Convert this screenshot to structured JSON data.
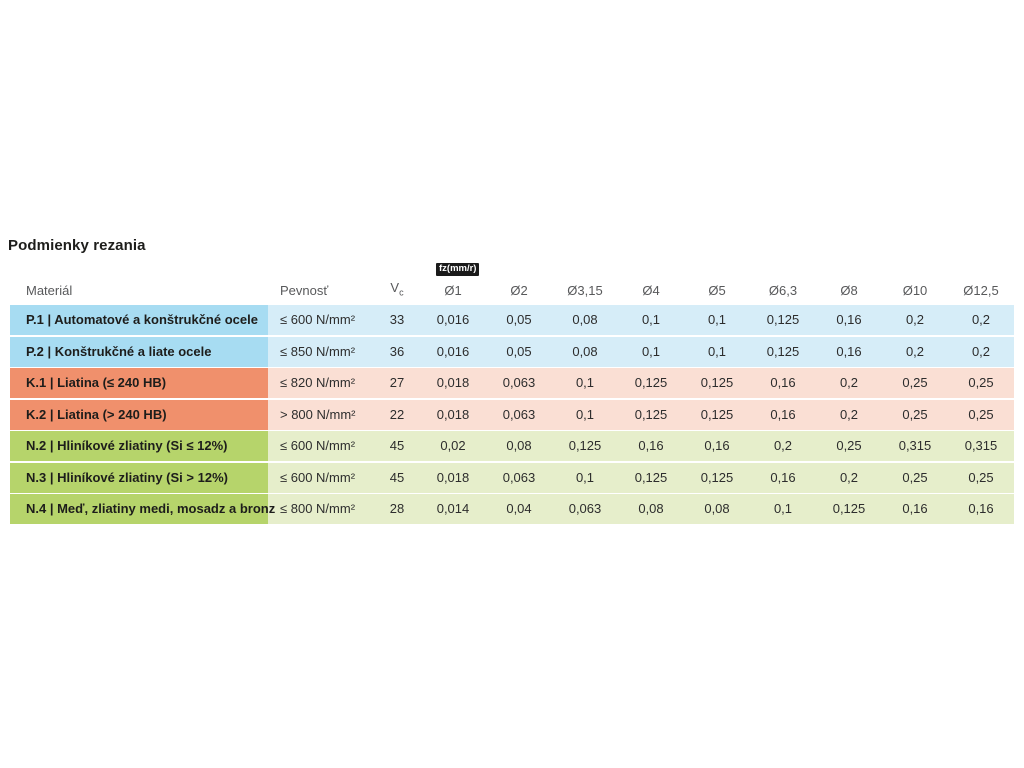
{
  "chart_data": {
    "type": "table",
    "title": "Podmienky rezania",
    "header": {
      "material": "Materiál",
      "strength": "Pevnosť",
      "vc_label": "V",
      "vc_subscript": "c",
      "fz_badge": "fz(mm/r)",
      "diameter_columns": [
        "Ø1",
        "Ø2",
        "Ø3,15",
        "Ø4",
        "Ø5",
        "Ø6,3",
        "Ø8",
        "Ø10",
        "Ø12,5"
      ]
    },
    "rows": [
      {
        "group": "P",
        "material": "P.1 | Automatové a konštrukčné ocele",
        "strength": "≤ 600 N/mm²",
        "vc": "33",
        "fz_values": [
          "0,016",
          "0,05",
          "0,08",
          "0,1",
          "0,1",
          "0,125",
          "0,16",
          "0,2",
          "0,2"
        ]
      },
      {
        "group": "P",
        "material": "P.2 | Konštrukčné a liate ocele",
        "strength": "≤ 850 N/mm²",
        "vc": "36",
        "fz_values": [
          "0,016",
          "0,05",
          "0,08",
          "0,1",
          "0,1",
          "0,125",
          "0,16",
          "0,2",
          "0,2"
        ]
      },
      {
        "group": "K",
        "material": "K.1 | Liatina (≤ 240 HB)",
        "strength": "≤ 820 N/mm²",
        "vc": "27",
        "fz_values": [
          "0,018",
          "0,063",
          "0,1",
          "0,125",
          "0,125",
          "0,16",
          "0,2",
          "0,25",
          "0,25"
        ]
      },
      {
        "group": "K",
        "material": "K.2 | Liatina (> 240 HB)",
        "strength": "> 800 N/mm²",
        "vc": "22",
        "fz_values": [
          "0,018",
          "0,063",
          "0,1",
          "0,125",
          "0,125",
          "0,16",
          "0,2",
          "0,25",
          "0,25"
        ]
      },
      {
        "group": "N",
        "material": "N.2 | Hliníkové zliatiny (Si ≤ 12%)",
        "strength": "≤ 600 N/mm²",
        "vc": "45",
        "fz_values": [
          "0,02",
          "0,08",
          "0,125",
          "0,16",
          "0,16",
          "0,2",
          "0,25",
          "0,315",
          "0,315"
        ]
      },
      {
        "group": "N",
        "material": "N.3 | Hliníkové zliatiny (Si > 12%)",
        "strength": "≤ 600 N/mm²",
        "vc": "45",
        "fz_values": [
          "0,018",
          "0,063",
          "0,1",
          "0,125",
          "0,125",
          "0,16",
          "0,2",
          "0,25",
          "0,25"
        ]
      },
      {
        "group": "N",
        "material": "N.4 | Meď, zliatiny medi, mosadz a bronz",
        "strength": "≤ 800 N/mm²",
        "vc": "28",
        "fz_values": [
          "0,014",
          "0,04",
          "0,063",
          "0,08",
          "0,08",
          "0,1",
          "0,125",
          "0,16",
          "0,16"
        ]
      }
    ],
    "group_colors": {
      "P": {
        "label_bg": "#a7dcf2",
        "row_bg": "#d6edf8"
      },
      "K": {
        "label_bg": "#f0906c",
        "row_bg": "#fadfd4"
      },
      "N": {
        "label_bg": "#b6d46b",
        "row_bg": "#e6eecb"
      }
    },
    "badge_colors": {
      "background": "#1a1a1a",
      "text": "#ffffff"
    }
  }
}
